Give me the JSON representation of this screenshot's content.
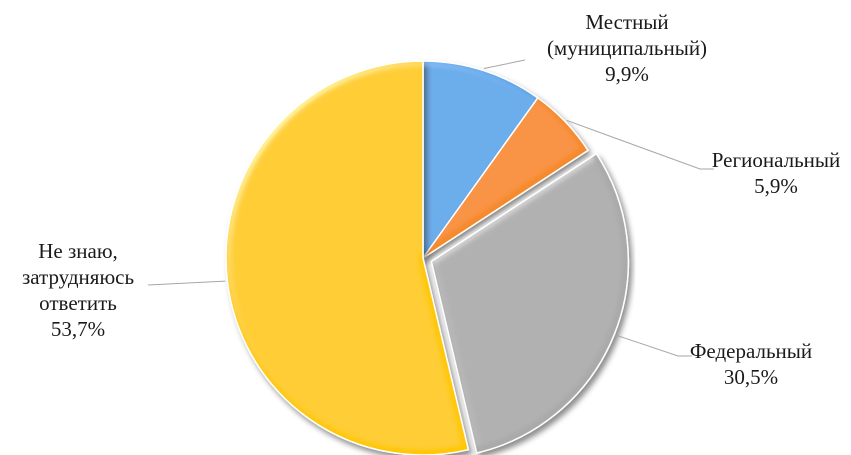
{
  "chart_data": {
    "type": "pie",
    "start": "top",
    "direction": "clockwise",
    "slices": [
      {
        "label_lines": [
          "Местный",
          "(муниципальный)"
        ],
        "value_label": "9,9%",
        "value": 9.9,
        "color": "#5fa6e6"
      },
      {
        "label_lines": [
          "Региональный"
        ],
        "value_label": "5,9%",
        "value": 5.9,
        "color": "#f58a2a"
      },
      {
        "label_lines": [
          "Федеральный"
        ],
        "value_label": "30,5%",
        "value": 30.5,
        "color": "#aaaaaa"
      },
      {
        "label_lines": [
          "Не знаю,",
          "затрудняюсь",
          "ответить"
        ],
        "value_label": "53,7%",
        "value": 53.7,
        "color": "#ffc800"
      }
    ]
  }
}
